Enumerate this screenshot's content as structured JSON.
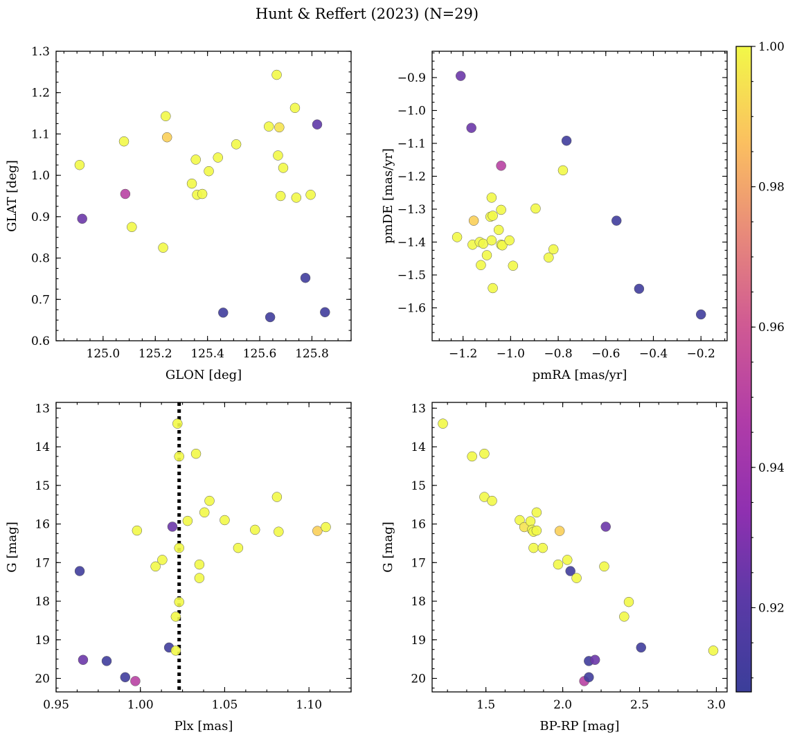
{
  "figure": {
    "title": "Hunt & Reffert (2023) (N=29)"
  },
  "colorbar": {
    "range": [
      0.908,
      1.0
    ],
    "ticks": [
      0.92,
      0.94,
      0.96,
      0.98,
      1.0
    ],
    "tick_labels": [
      "0.92",
      "0.94",
      "0.96",
      "0.98",
      "1.00"
    ],
    "colormap": "plasma"
  },
  "chart_data": [
    {
      "type": "scatter",
      "xlabel": "GLON [deg]",
      "ylabel": "GLAT [deg]",
      "xlim": [
        124.82,
        125.95
      ],
      "ylim": [
        0.6,
        1.3
      ],
      "inverted_y": false,
      "xticks": [
        125.0,
        125.2,
        125.4,
        125.6,
        125.8
      ],
      "xtick_labels": [
        "125.0",
        "125.2",
        "125.4",
        "125.6",
        "125.8"
      ],
      "yticks": [
        0.6,
        0.7,
        0.8,
        0.9,
        1.0,
        1.1,
        1.2,
        1.3
      ],
      "ytick_labels": [
        "0.6",
        "0.7",
        "0.8",
        "0.9",
        "1.0",
        "1.1",
        "1.2",
        "1.3"
      ],
      "points": [
        {
          "x": 124.91,
          "y": 1.025,
          "c": 1.0
        },
        {
          "x": 124.92,
          "y": 0.895,
          "c": 0.925
        },
        {
          "x": 125.08,
          "y": 1.082,
          "c": 1.0
        },
        {
          "x": 125.085,
          "y": 0.955,
          "c": 0.95
        },
        {
          "x": 125.11,
          "y": 0.875,
          "c": 1.0
        },
        {
          "x": 125.23,
          "y": 0.825,
          "c": 1.0
        },
        {
          "x": 125.24,
          "y": 1.143,
          "c": 1.0
        },
        {
          "x": 125.245,
          "y": 1.092,
          "c": 0.99
        },
        {
          "x": 125.34,
          "y": 0.98,
          "c": 1.0
        },
        {
          "x": 125.355,
          "y": 1.038,
          "c": 1.0
        },
        {
          "x": 125.36,
          "y": 0.953,
          "c": 1.0
        },
        {
          "x": 125.38,
          "y": 0.955,
          "c": 1.0
        },
        {
          "x": 125.405,
          "y": 1.01,
          "c": 1.0
        },
        {
          "x": 125.44,
          "y": 1.043,
          "c": 1.0
        },
        {
          "x": 125.46,
          "y": 0.668,
          "c": 0.91
        },
        {
          "x": 125.51,
          "y": 1.075,
          "c": 1.0
        },
        {
          "x": 125.635,
          "y": 1.118,
          "c": 1.0
        },
        {
          "x": 125.64,
          "y": 0.657,
          "c": 0.91
        },
        {
          "x": 125.665,
          "y": 1.243,
          "c": 1.0
        },
        {
          "x": 125.67,
          "y": 1.048,
          "c": 1.0
        },
        {
          "x": 125.675,
          "y": 1.116,
          "c": 0.995
        },
        {
          "x": 125.68,
          "y": 0.95,
          "c": 1.0
        },
        {
          "x": 125.69,
          "y": 1.018,
          "c": 1.0
        },
        {
          "x": 125.735,
          "y": 1.163,
          "c": 1.0
        },
        {
          "x": 125.74,
          "y": 0.946,
          "c": 1.0
        },
        {
          "x": 125.775,
          "y": 0.752,
          "c": 0.91
        },
        {
          "x": 125.795,
          "y": 0.953,
          "c": 1.0
        },
        {
          "x": 125.82,
          "y": 1.123,
          "c": 0.922
        },
        {
          "x": 125.85,
          "y": 0.669,
          "c": 0.91
        }
      ]
    },
    {
      "type": "scatter",
      "xlabel": "pmRA [mas/yr]",
      "ylabel": "pmDE [mas/yr]",
      "xlim": [
        -1.33,
        -0.09
      ],
      "ylim": [
        -1.7,
        -0.82
      ],
      "inverted_y": false,
      "xticks": [
        -1.2,
        -1.0,
        -0.8,
        -0.6,
        -0.4,
        -0.2
      ],
      "xtick_labels": [
        "−1.2",
        "−1.0",
        "−0.8",
        "−0.6",
        "−0.4",
        "−0.2"
      ],
      "yticks": [
        -1.6,
        -1.5,
        -1.4,
        -1.3,
        -1.2,
        -1.1,
        -1.0,
        -0.9
      ],
      "ytick_labels": [
        "−1.6",
        "−1.5",
        "−1.4",
        "−1.3",
        "−1.2",
        "−1.1",
        "−1.0",
        "−0.9"
      ],
      "points": [
        {
          "x": -1.21,
          "y": -0.895,
          "c": 0.925
        },
        {
          "x": -1.165,
          "y": -1.053,
          "c": 0.925
        },
        {
          "x": -1.225,
          "y": -1.385,
          "c": 1.0
        },
        {
          "x": -1.155,
          "y": -1.335,
          "c": 0.99
        },
        {
          "x": -1.16,
          "y": -1.408,
          "c": 1.0
        },
        {
          "x": -1.13,
          "y": -1.4,
          "c": 1.0
        },
        {
          "x": -1.125,
          "y": -1.47,
          "c": 1.0
        },
        {
          "x": -1.115,
          "y": -1.405,
          "c": 1.0
        },
        {
          "x": -1.1,
          "y": -1.44,
          "c": 1.0
        },
        {
          "x": -1.085,
          "y": -1.323,
          "c": 1.0
        },
        {
          "x": -1.08,
          "y": -1.265,
          "c": 1.0
        },
        {
          "x": -1.08,
          "y": -1.395,
          "c": 1.0
        },
        {
          "x": -1.075,
          "y": -1.32,
          "c": 1.0
        },
        {
          "x": -1.075,
          "y": -1.54,
          "c": 1.0
        },
        {
          "x": -1.05,
          "y": -1.363,
          "c": 1.0
        },
        {
          "x": -1.04,
          "y": -1.408,
          "c": 1.0
        },
        {
          "x": -1.04,
          "y": -1.302,
          "c": 1.0
        },
        {
          "x": -1.035,
          "y": -1.41,
          "c": 1.0
        },
        {
          "x": -1.04,
          "y": -1.168,
          "c": 0.95
        },
        {
          "x": -1.005,
          "y": -1.395,
          "c": 1.0
        },
        {
          "x": -0.99,
          "y": -1.472,
          "c": 1.0
        },
        {
          "x": -0.895,
          "y": -1.298,
          "c": 1.0
        },
        {
          "x": -0.84,
          "y": -1.447,
          "c": 1.0
        },
        {
          "x": -0.82,
          "y": -1.422,
          "c": 1.0
        },
        {
          "x": -0.78,
          "y": -1.182,
          "c": 1.0
        },
        {
          "x": -0.765,
          "y": -1.092,
          "c": 0.91
        },
        {
          "x": -0.555,
          "y": -1.335,
          "c": 0.91
        },
        {
          "x": -0.46,
          "y": -1.542,
          "c": 0.91
        },
        {
          "x": -0.2,
          "y": -1.62,
          "c": 0.91
        }
      ]
    },
    {
      "type": "scatter",
      "xlabel": "Plx [mas]",
      "ylabel": "G [mag]",
      "xlim": [
        0.95,
        1.125
      ],
      "ylim": [
        12.85,
        20.35
      ],
      "inverted_y": true,
      "vline": {
        "x": 1.023,
        "style": "dotted"
      },
      "xticks": [
        0.95,
        1.0,
        1.05,
        1.1
      ],
      "xtick_labels": [
        "0.95",
        "1.00",
        "1.05",
        "1.10"
      ],
      "yticks": [
        13,
        14,
        15,
        16,
        17,
        18,
        19,
        20
      ],
      "ytick_labels": [
        "13",
        "14",
        "15",
        "16",
        "17",
        "18",
        "19",
        "20"
      ],
      "points": [
        {
          "x": 0.964,
          "y": 17.22,
          "c": 0.91
        },
        {
          "x": 0.966,
          "y": 19.52,
          "c": 0.925
        },
        {
          "x": 0.98,
          "y": 19.55,
          "c": 0.91
        },
        {
          "x": 0.991,
          "y": 19.97,
          "c": 0.91
        },
        {
          "x": 0.997,
          "y": 20.07,
          "c": 0.95
        },
        {
          "x": 0.998,
          "y": 16.17,
          "c": 1.0
        },
        {
          "x": 1.009,
          "y": 17.1,
          "c": 1.0
        },
        {
          "x": 1.013,
          "y": 16.93,
          "c": 1.0
        },
        {
          "x": 1.017,
          "y": 19.2,
          "c": 0.91
        },
        {
          "x": 1.019,
          "y": 16.07,
          "c": 0.925
        },
        {
          "x": 1.021,
          "y": 18.4,
          "c": 1.0
        },
        {
          "x": 1.021,
          "y": 19.28,
          "c": 1.0
        },
        {
          "x": 1.022,
          "y": 13.4,
          "c": 1.0
        },
        {
          "x": 1.023,
          "y": 14.25,
          "c": 1.0
        },
        {
          "x": 1.023,
          "y": 16.62,
          "c": 1.0
        },
        {
          "x": 1.023,
          "y": 18.02,
          "c": 1.0
        },
        {
          "x": 1.028,
          "y": 15.92,
          "c": 1.0
        },
        {
          "x": 1.033,
          "y": 14.18,
          "c": 1.0
        },
        {
          "x": 1.035,
          "y": 17.05,
          "c": 1.0
        },
        {
          "x": 1.035,
          "y": 17.4,
          "c": 1.0
        },
        {
          "x": 1.038,
          "y": 15.7,
          "c": 1.0
        },
        {
          "x": 1.041,
          "y": 15.4,
          "c": 1.0
        },
        {
          "x": 1.05,
          "y": 15.9,
          "c": 1.0
        },
        {
          "x": 1.058,
          "y": 16.62,
          "c": 1.0
        },
        {
          "x": 1.068,
          "y": 16.15,
          "c": 1.0
        },
        {
          "x": 1.081,
          "y": 15.3,
          "c": 1.0
        },
        {
          "x": 1.082,
          "y": 16.2,
          "c": 1.0
        },
        {
          "x": 1.105,
          "y": 16.18,
          "c": 0.99
        },
        {
          "x": 1.11,
          "y": 16.08,
          "c": 1.0
        }
      ]
    },
    {
      "type": "scatter",
      "xlabel": "BP-RP [mag]",
      "ylabel": "G [mag]",
      "xlim": [
        1.15,
        3.07
      ],
      "ylim": [
        12.85,
        20.35
      ],
      "inverted_y": true,
      "xticks": [
        1.5,
        2.0,
        2.5,
        3.0
      ],
      "xtick_labels": [
        "1.5",
        "2.0",
        "2.5",
        "3.0"
      ],
      "yticks": [
        13,
        14,
        15,
        16,
        17,
        18,
        19,
        20
      ],
      "ytick_labels": [
        "13",
        "14",
        "15",
        "16",
        "17",
        "18",
        "19",
        "20"
      ],
      "points": [
        {
          "x": 1.22,
          "y": 13.4,
          "c": 1.0
        },
        {
          "x": 1.41,
          "y": 14.25,
          "c": 1.0
        },
        {
          "x": 1.49,
          "y": 14.18,
          "c": 1.0
        },
        {
          "x": 1.49,
          "y": 15.3,
          "c": 1.0
        },
        {
          "x": 1.54,
          "y": 15.4,
          "c": 1.0
        },
        {
          "x": 1.72,
          "y": 15.9,
          "c": 1.0
        },
        {
          "x": 1.75,
          "y": 16.08,
          "c": 0.995
        },
        {
          "x": 1.79,
          "y": 15.93,
          "c": 1.0
        },
        {
          "x": 1.8,
          "y": 16.15,
          "c": 1.0
        },
        {
          "x": 1.81,
          "y": 16.2,
          "c": 1.0
        },
        {
          "x": 1.81,
          "y": 16.62,
          "c": 1.0
        },
        {
          "x": 1.83,
          "y": 15.7,
          "c": 1.0
        },
        {
          "x": 1.83,
          "y": 16.17,
          "c": 1.0
        },
        {
          "x": 1.87,
          "y": 16.62,
          "c": 1.0
        },
        {
          "x": 1.97,
          "y": 17.05,
          "c": 1.0
        },
        {
          "x": 1.98,
          "y": 16.18,
          "c": 0.99
        },
        {
          "x": 2.03,
          "y": 16.93,
          "c": 1.0
        },
        {
          "x": 2.05,
          "y": 17.22,
          "c": 0.91
        },
        {
          "x": 2.09,
          "y": 17.4,
          "c": 1.0
        },
        {
          "x": 2.14,
          "y": 20.07,
          "c": 0.95
        },
        {
          "x": 2.17,
          "y": 19.55,
          "c": 0.91
        },
        {
          "x": 2.17,
          "y": 19.97,
          "c": 0.91
        },
        {
          "x": 2.21,
          "y": 19.52,
          "c": 0.925
        },
        {
          "x": 2.27,
          "y": 17.1,
          "c": 1.0
        },
        {
          "x": 2.28,
          "y": 16.07,
          "c": 0.925
        },
        {
          "x": 2.4,
          "y": 18.4,
          "c": 1.0
        },
        {
          "x": 2.43,
          "y": 18.02,
          "c": 1.0
        },
        {
          "x": 2.51,
          "y": 19.2,
          "c": 0.91
        },
        {
          "x": 2.98,
          "y": 19.28,
          "c": 1.0
        }
      ]
    }
  ]
}
